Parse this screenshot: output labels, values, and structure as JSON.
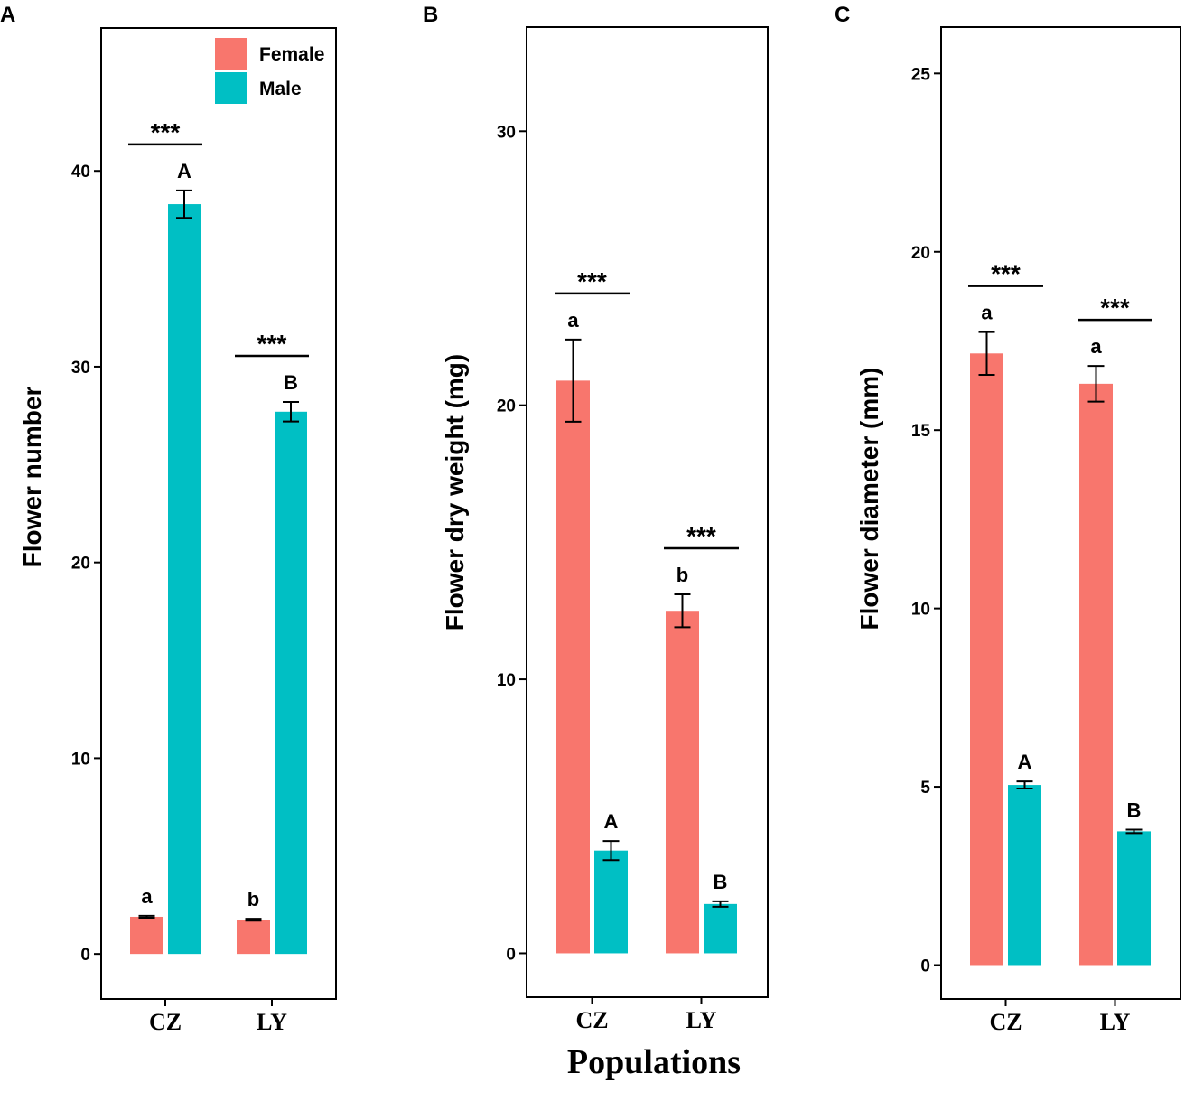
{
  "figure": {
    "xlabel": "Populations",
    "colors": {
      "female": "#F8766D",
      "male": "#00BFC4",
      "axis": "#000000"
    }
  },
  "legend": [
    {
      "label": "Female",
      "color": "#F8766D"
    },
    {
      "label": "Male",
      "color": "#00BFC4"
    }
  ],
  "chart_data": [
    {
      "panel": "A",
      "type": "bar",
      "categories": [
        "CZ",
        "LY"
      ],
      "ylabel": "Flower number",
      "ylim": [
        -2.3,
        47.3
      ],
      "yticks": [
        0,
        10,
        20,
        30,
        40
      ],
      "series": [
        {
          "name": "Female",
          "values": [
            1.9,
            1.75
          ],
          "errors": [
            0.05,
            0.05
          ],
          "letters": [
            "a",
            "b"
          ]
        },
        {
          "name": "Male",
          "values": [
            38.3,
            27.7
          ],
          "errors": [
            0.7,
            0.5
          ],
          "letters": [
            "A",
            "B"
          ]
        }
      ],
      "significance": [
        "***",
        "***"
      ]
    },
    {
      "panel": "B",
      "type": "bar",
      "categories": [
        "CZ",
        "LY"
      ],
      "ylabel": "Flower dry weight (mg)",
      "ylim": [
        -1.6,
        33.8
      ],
      "yticks": [
        0,
        10,
        20,
        30
      ],
      "series": [
        {
          "name": "Female",
          "values": [
            20.9,
            12.5
          ],
          "errors": [
            1.5,
            0.6
          ],
          "letters": [
            "a",
            "b"
          ]
        },
        {
          "name": "Male",
          "values": [
            3.75,
            1.8
          ],
          "errors": [
            0.35,
            0.1
          ],
          "letters": [
            "A",
            "B"
          ]
        }
      ],
      "significance": [
        "***",
        "***"
      ]
    },
    {
      "panel": "C",
      "type": "bar",
      "categories": [
        "CZ",
        "LY"
      ],
      "ylabel": "Flower diameter (mm)",
      "ylim": [
        -0.95,
        26.3
      ],
      "yticks": [
        0,
        5,
        10,
        15,
        20,
        25
      ],
      "series": [
        {
          "name": "Female",
          "values": [
            17.15,
            16.3
          ],
          "errors": [
            0.6,
            0.5
          ],
          "letters": [
            "a",
            "a"
          ]
        },
        {
          "name": "Male",
          "values": [
            5.05,
            3.75
          ],
          "errors": [
            0.1,
            0.05
          ],
          "letters": [
            "A",
            "B"
          ]
        }
      ],
      "significance": [
        "***",
        "***"
      ]
    }
  ]
}
